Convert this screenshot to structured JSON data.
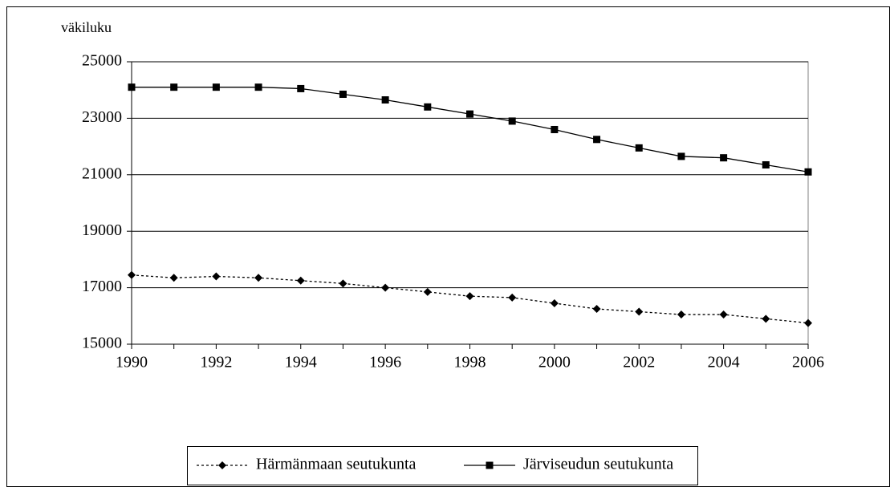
{
  "chart_data": {
    "type": "line",
    "y_label": "väkiluku",
    "x": [
      1990,
      1991,
      1992,
      1993,
      1994,
      1995,
      1996,
      1997,
      1998,
      1999,
      2000,
      2001,
      2002,
      2003,
      2004,
      2005,
      2006
    ],
    "series": [
      {
        "name": "Härmänmaan seutukunta",
        "color": "#000000",
        "line_style": "dotted",
        "marker": "diamond",
        "values": [
          17450,
          17350,
          17400,
          17350,
          17250,
          17150,
          17000,
          16850,
          16700,
          16650,
          16450,
          16250,
          16150,
          16050,
          16050,
          15900,
          15750
        ]
      },
      {
        "name": "Järviseudun seutukunta",
        "color": "#000000",
        "line_style": "solid",
        "marker": "square",
        "values": [
          24100,
          24100,
          24100,
          24100,
          24050,
          23850,
          23650,
          23400,
          23150,
          22900,
          22600,
          22250,
          21950,
          21650,
          21600,
          21350,
          21100
        ]
      }
    ],
    "xlim": [
      1990,
      2006
    ],
    "xticks": [
      1990,
      1992,
      1994,
      1996,
      1998,
      2000,
      2002,
      2004,
      2006
    ],
    "ylim": [
      15000,
      25000
    ],
    "yticks": [
      15000,
      17000,
      19000,
      21000,
      23000,
      25000
    ],
    "grid": true,
    "legend_position": "bottom"
  }
}
